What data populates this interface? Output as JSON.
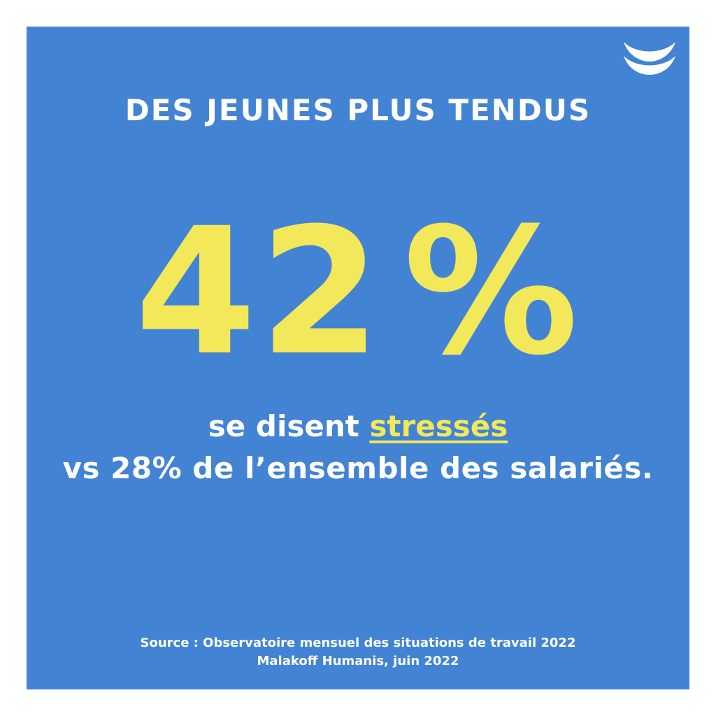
{
  "card": {
    "background": "#4383d4",
    "accent": "#f2e85a",
    "logo_icon": "smile-waves-icon"
  },
  "title": "DES JEUNES PLUS TENDUS",
  "stat": {
    "value": "42",
    "unit": "%"
  },
  "subtitle": {
    "prefix": "se disent ",
    "highlight": "stressés",
    "line2": "vs 28% de l’ensemble des salariés."
  },
  "source": {
    "line1": "Source : Observatoire mensuel des situations de travail 2022",
    "line2": "Malakoff Humanis, juin 2022"
  }
}
